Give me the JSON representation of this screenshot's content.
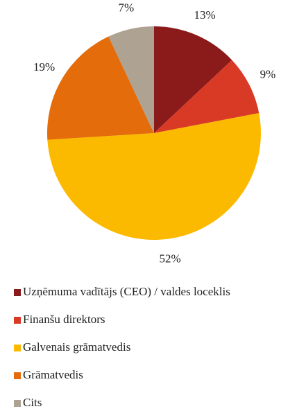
{
  "chart_data": {
    "type": "pie",
    "categories": [
      "Uzņēmuma vadītājs (CEO) / valdes loceklis",
      "Finanšu direktors",
      "Galvenais grāmatvedis",
      "Grāmatvedis",
      "Cits"
    ],
    "values": [
      13,
      9,
      52,
      19,
      7
    ],
    "value_labels": [
      "13%",
      "9%",
      "52%",
      "19%",
      "7%"
    ],
    "colors": [
      "#8b1a1a",
      "#d93a26",
      "#fbb900",
      "#e46c0a",
      "#aea393"
    ]
  }
}
